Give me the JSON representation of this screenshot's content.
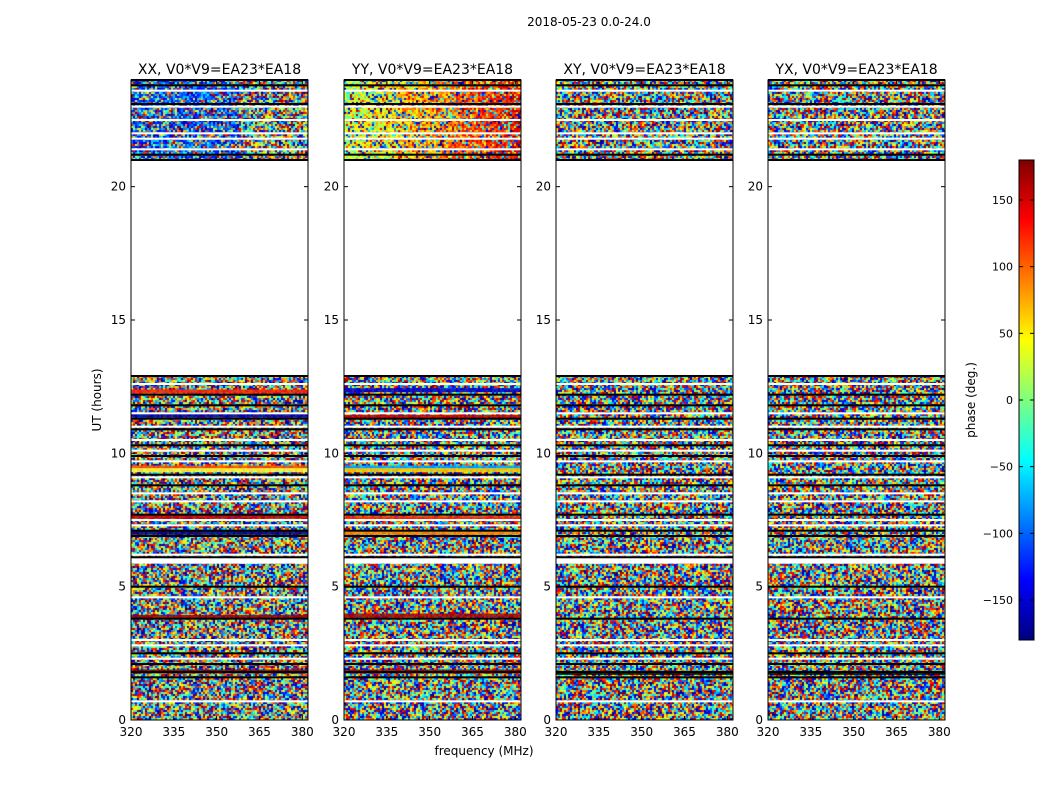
{
  "chart_data": {
    "type": "heatmap",
    "title": "2018-05-23 0.0-24.0",
    "xlabel": "frequency (MHz)",
    "ylabel": "UT (hours)",
    "xlim": [
      320,
      382
    ],
    "ylim": [
      0,
      24
    ],
    "xticks": [
      320,
      335,
      350,
      365,
      380
    ],
    "yticks": [
      0,
      5,
      10,
      15,
      20
    ],
    "panels": [
      {
        "title": "XX, V0*V9=EA23*EA18",
        "polarization": "XX"
      },
      {
        "title": "YY, V0*V9=EA23*EA18",
        "polarization": "YY"
      },
      {
        "title": "XY, V0*V9=EA23*EA18",
        "polarization": "XY"
      },
      {
        "title": "YX, V0*V9=EA23*EA18",
        "polarization": "YX"
      }
    ],
    "data_gaps_ut": [
      [
        12.9,
        21.0
      ]
    ],
    "colorbar": {
      "label": "phase (deg.)",
      "range": [
        -180,
        180
      ],
      "ticks": [
        -150,
        -100,
        -50,
        0,
        50,
        100,
        150
      ],
      "colormap": "jet",
      "colors": [
        "#00007f",
        "#0000ff",
        "#007fff",
        "#00ffff",
        "#7fff7f",
        "#ffff00",
        "#ff7f00",
        "#ff0000",
        "#7f0000"
      ]
    }
  }
}
